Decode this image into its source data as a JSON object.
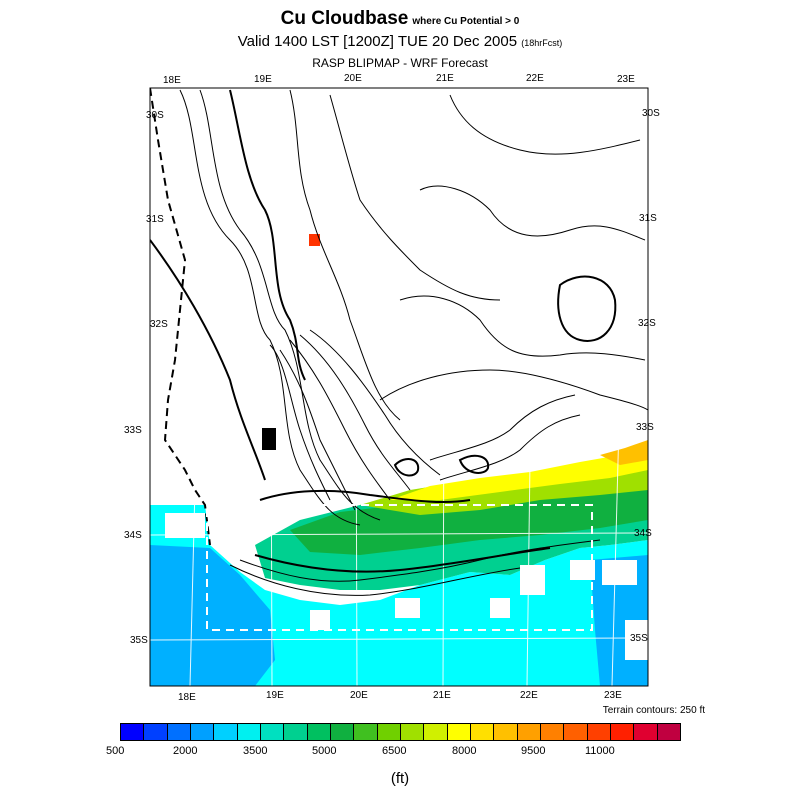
{
  "header": {
    "title": "Cu Cloudbase",
    "title_sub": "where Cu Potential > 0",
    "valid": "Valid 1400 LST [1200Z] TUE 20 Dec 2005",
    "valid_sub": "(18hrFcst)",
    "model": "RASP BLIPMAP - WRF Forecast"
  },
  "map": {
    "lon_labels_top": [
      "18E",
      "19E",
      "20E",
      "21E",
      "22E",
      "23E"
    ],
    "lon_labels_bottom": [
      "18E",
      "19E",
      "20E",
      "21E",
      "22E",
      "23E"
    ],
    "lat_labels_left": [
      "30S",
      "31S",
      "32S",
      "33S",
      "34S",
      "35S"
    ],
    "lat_labels_right": [
      "30S",
      "31S",
      "32S",
      "33S",
      "34S",
      "35S"
    ],
    "terrain_note": "Terrain contours: 250 ft"
  },
  "colorbar": {
    "colors": [
      "#0000ff",
      "#0040ff",
      "#0070ff",
      "#00a0ff",
      "#00d0ff",
      "#00f0f0",
      "#00e0c0",
      "#00d090",
      "#00c060",
      "#10b040",
      "#40c020",
      "#70d000",
      "#a0e000",
      "#d0f000",
      "#ffff00",
      "#ffe000",
      "#ffc000",
      "#ffa000",
      "#ff8000",
      "#ff6000",
      "#ff4000",
      "#ff2000",
      "#e00030",
      "#c00040"
    ],
    "tick_labels": [
      "500",
      "2000",
      "3500",
      "5000",
      "6500",
      "8000",
      "9500",
      "11000"
    ],
    "unit": "(ft)"
  },
  "colors": {
    "ocean": "#00ffff",
    "sea_blue": "#00b0ff",
    "highlight": "#ff3300"
  }
}
